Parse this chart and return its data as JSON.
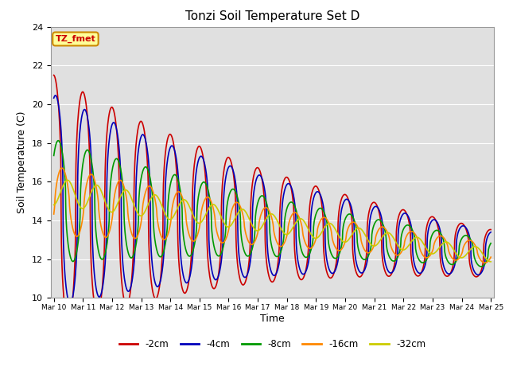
{
  "title": "Tonzi Soil Temperature Set D",
  "xlabel": "Time",
  "ylabel": "Soil Temperature (C)",
  "ylim": [
    10,
    24
  ],
  "yticks": [
    10,
    12,
    14,
    16,
    18,
    20,
    22,
    24
  ],
  "background_color": "#ffffff",
  "plot_bg_color": "#e0e0e0",
  "legend_label": "TZ_fmet",
  "series": [
    {
      "label": "-2cm",
      "color": "#cc0000",
      "lw": 1.2
    },
    {
      "label": "-4cm",
      "color": "#0000bb",
      "lw": 1.2
    },
    {
      "label": "-8cm",
      "color": "#009900",
      "lw": 1.2
    },
    {
      "label": "-16cm",
      "color": "#ff8800",
      "lw": 1.2
    },
    {
      "label": "-32cm",
      "color": "#cccc00",
      "lw": 1.2
    }
  ]
}
